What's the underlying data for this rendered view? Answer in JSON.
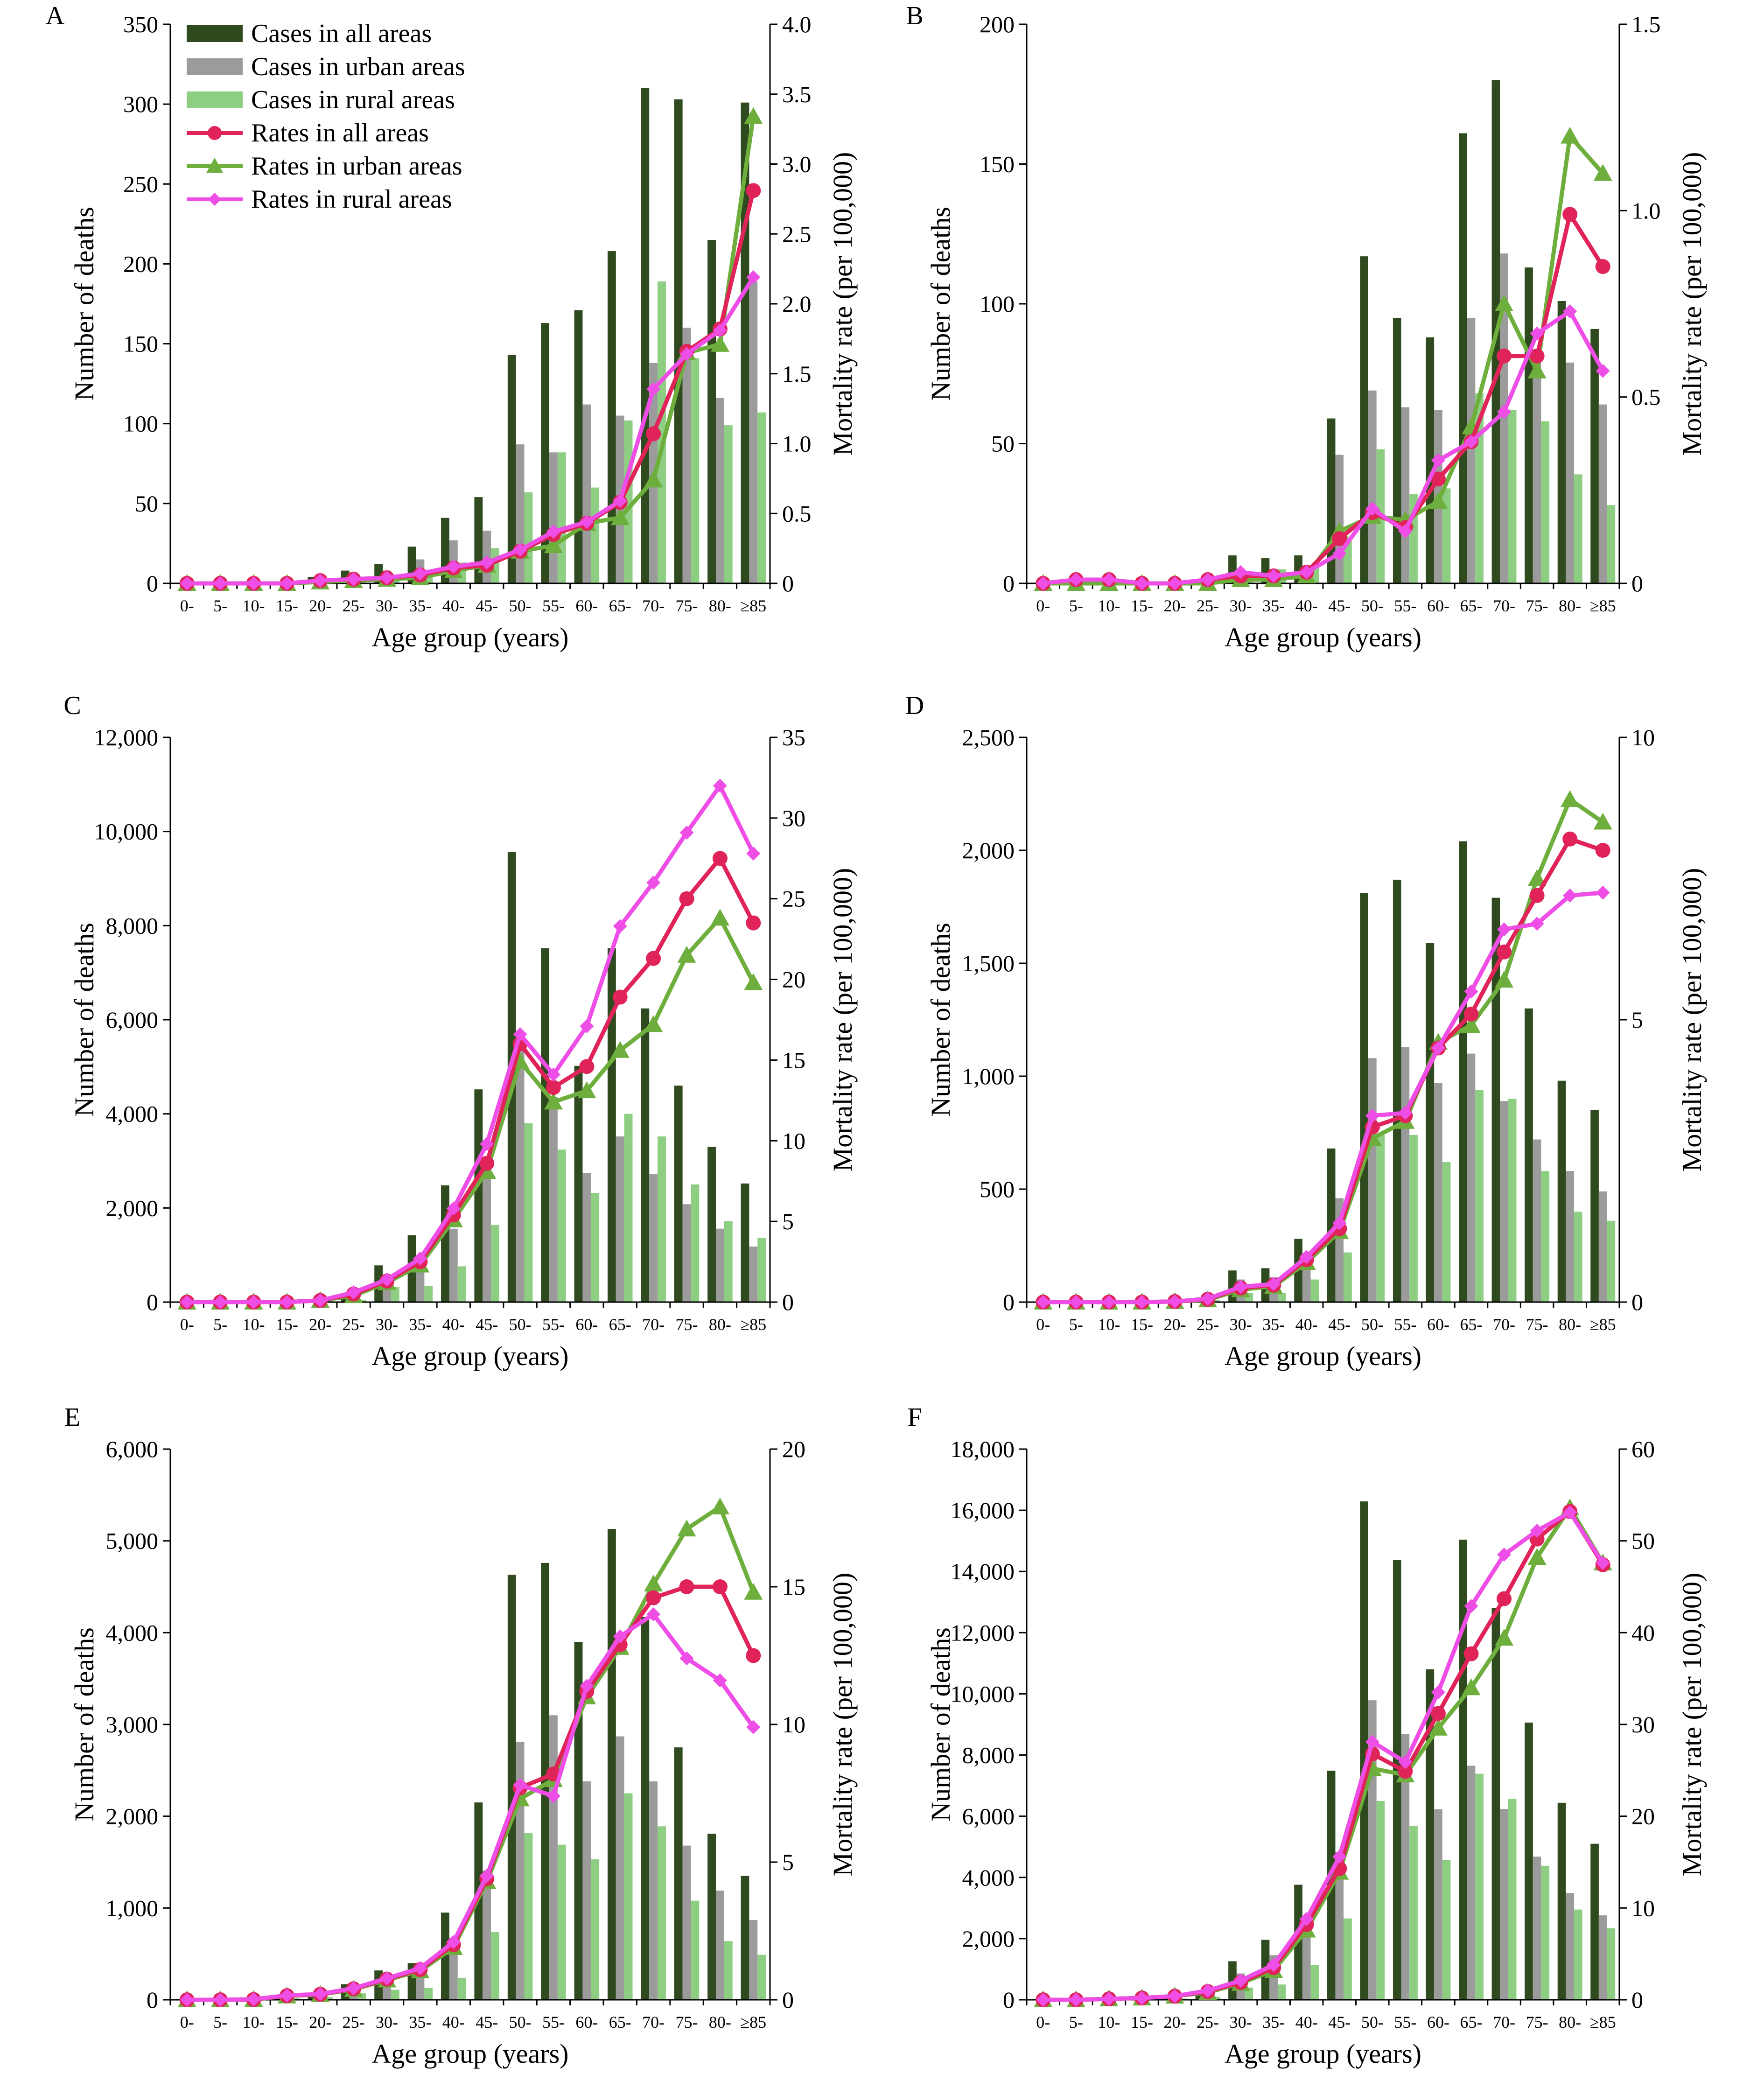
{
  "age_groups": [
    "0-",
    "5-",
    "10-",
    "15-",
    "20-",
    "25-",
    "30-",
    "35-",
    "40-",
    "45-",
    "50-",
    "55-",
    "60-",
    "65-",
    "70-",
    "75-",
    "80-",
    "≥85"
  ],
  "colors": {
    "cases_all": "#2f4a1e",
    "cases_urban": "#9b9b9b",
    "cases_rural": "#8ece83",
    "rates_all": "#e0245a",
    "rates_urban": "#6dae3c",
    "rates_rural": "#ee4ee6"
  },
  "legend": {
    "items": [
      {
        "label": "Cases in all areas",
        "key": "cases_all",
        "kind": "bar"
      },
      {
        "label": "Cases in urban areas",
        "key": "cases_urban",
        "kind": "bar"
      },
      {
        "label": "Cases in rural areas",
        "key": "cases_rural",
        "kind": "bar"
      },
      {
        "label": "Rates in all areas",
        "key": "rates_all",
        "kind": "line",
        "marker": "circle"
      },
      {
        "label": "Rates in urban areas",
        "key": "rates_urban",
        "kind": "line",
        "marker": "triangle"
      },
      {
        "label": "Rates in rural areas",
        "key": "rates_rural",
        "kind": "line",
        "marker": "diamond"
      }
    ]
  },
  "chart_data": [
    {
      "panel": "A",
      "type": "bar",
      "xlabel": "Age group (years)",
      "ylabel": "Number of deaths",
      "y2label": "Mortality rate (per 100,000)",
      "ylim": [
        0,
        350
      ],
      "yticks": [
        0,
        50,
        100,
        150,
        200,
        250,
        300,
        350
      ],
      "y2lim": [
        0,
        4
      ],
      "y2ticks": [
        0,
        0.5,
        1.0,
        1.5,
        2.0,
        2.5,
        3.0,
        3.5,
        4.0
      ],
      "ytick_labels": [
        "0",
        "50",
        "100",
        "150",
        "200",
        "250",
        "300",
        "350"
      ],
      "y2tick_labels": [
        "0",
        "0.5",
        "1.0",
        "1.5",
        "2.0",
        "2.5",
        "3.0",
        "3.5",
        "4.0"
      ],
      "cases_all": [
        0,
        0,
        0,
        1,
        4,
        8,
        12,
        23,
        41,
        54,
        143,
        163,
        171,
        208,
        310,
        303,
        215,
        301
      ],
      "cases_urban": [
        0,
        0,
        0,
        0,
        2,
        5,
        8,
        15,
        27,
        33,
        87,
        82,
        112,
        105,
        138,
        160,
        116,
        189
      ],
      "cases_rural": [
        0,
        0,
        0,
        0,
        1,
        2,
        4,
        7,
        13,
        22,
        57,
        82,
        60,
        102,
        189,
        141,
        99,
        107
      ],
      "rates_all": [
        0,
        0,
        0,
        0,
        0.02,
        0.03,
        0.04,
        0.06,
        0.11,
        0.13,
        0.23,
        0.35,
        0.43,
        0.58,
        1.07,
        1.66,
        1.82,
        2.81
      ],
      "rates_urban": [
        0,
        0,
        0,
        0,
        0.01,
        0.02,
        0.03,
        0.04,
        0.09,
        0.13,
        0.23,
        0.27,
        0.43,
        0.47,
        0.74,
        1.65,
        1.71,
        3.34
      ],
      "rates_rural": [
        0,
        0,
        0,
        0,
        0.02,
        0.03,
        0.04,
        0.07,
        0.12,
        0.15,
        0.24,
        0.37,
        0.44,
        0.59,
        1.39,
        1.64,
        1.81,
        2.19
      ]
    },
    {
      "panel": "B",
      "type": "bar",
      "xlabel": "Age group (years)",
      "ylabel": "Number of deaths",
      "y2label": "Mortality rate (per 100,000)",
      "ylim": [
        0,
        200
      ],
      "yticks": [
        0,
        50,
        100,
        150,
        200
      ],
      "y2lim": [
        0,
        1.5
      ],
      "y2ticks": [
        0,
        0.5,
        1.0,
        1.5
      ],
      "ytick_labels": [
        "0",
        "50",
        "100",
        "150",
        "200"
      ],
      "y2tick_labels": [
        "0",
        "0.5",
        "1.0",
        "1.5"
      ],
      "cases_all": [
        0,
        1,
        1,
        0,
        0,
        1,
        10,
        9,
        10,
        59,
        117,
        95,
        88,
        161,
        180,
        113,
        101,
        91
      ],
      "cases_urban": [
        0,
        1,
        0,
        0,
        0,
        0,
        4,
        5,
        6,
        46,
        69,
        63,
        62,
        95,
        118,
        81,
        79,
        64
      ],
      "cases_rural": [
        0,
        0,
        0,
        0,
        0,
        0,
        3,
        5,
        6,
        15,
        48,
        32,
        34,
        68,
        62,
        58,
        39,
        28
      ],
      "rates_all": [
        0,
        0.01,
        0.01,
        0,
        0,
        0.01,
        0.02,
        0.02,
        0.03,
        0.12,
        0.19,
        0.15,
        0.28,
        0.38,
        0.61,
        0.61,
        0.99,
        0.85
      ],
      "rates_urban": [
        0,
        0,
        0,
        0,
        0,
        0,
        0.01,
        0.01,
        0.02,
        0.14,
        0.18,
        0.17,
        0.22,
        0.42,
        0.75,
        0.57,
        1.2,
        1.1
      ],
      "rates_rural": [
        0,
        0.01,
        0.01,
        0,
        0,
        0.01,
        0.03,
        0.02,
        0.03,
        0.08,
        0.2,
        0.14,
        0.33,
        0.38,
        0.46,
        0.67,
        0.73,
        0.57
      ]
    },
    {
      "panel": "C",
      "type": "bar",
      "xlabel": "Age group (years)",
      "ylabel": "Number of deaths",
      "y2label": "Mortality rate (per 100,000)",
      "ylim": [
        0,
        12000
      ],
      "yticks": [
        0,
        2000,
        4000,
        6000,
        8000,
        10000,
        12000
      ],
      "y2lim": [
        0,
        35
      ],
      "y2ticks": [
        0,
        5,
        10,
        15,
        20,
        25,
        30,
        35
      ],
      "ytick_labels": [
        "0",
        "2,000",
        "4,000",
        "6,000",
        "8,000",
        "10,000",
        "12,000"
      ],
      "y2tick_labels": [
        "0",
        "5",
        "10",
        "15",
        "20",
        "25",
        "30",
        "35"
      ],
      "cases_all": [
        0,
        0,
        0,
        0,
        40,
        120,
        780,
        1420,
        2480,
        4520,
        9560,
        7520,
        5020,
        7520,
        6240,
        4600,
        3300,
        2520
      ],
      "cases_urban": [
        0,
        0,
        0,
        0,
        20,
        60,
        460,
        760,
        1560,
        2780,
        5420,
        4360,
        2740,
        3520,
        2720,
        2080,
        1560,
        1180
      ],
      "cases_rural": [
        0,
        0,
        0,
        0,
        20,
        40,
        320,
        340,
        760,
        1640,
        3800,
        3240,
        2320,
        4000,
        3520,
        2500,
        1720,
        1360
      ],
      "rates_all": [
        0,
        0,
        0,
        0,
        0.1,
        0.5,
        1.3,
        2.5,
        5.4,
        8.6,
        16.0,
        13.3,
        14.6,
        18.9,
        21.3,
        25.0,
        27.5,
        23.5
      ],
      "rates_urban": [
        0,
        0,
        0,
        0,
        0.1,
        0.4,
        1.2,
        2.3,
        5.1,
        8.1,
        14.9,
        12.4,
        13.1,
        15.6,
        17.2,
        21.5,
        23.8,
        19.8
      ],
      "rates_rural": [
        0,
        0,
        0,
        0,
        0.1,
        0.6,
        1.4,
        2.7,
        5.8,
        9.8,
        16.6,
        14.1,
        17.1,
        23.3,
        26.0,
        29.1,
        32.0,
        27.8
      ]
    },
    {
      "panel": "D",
      "type": "bar",
      "xlabel": "Age group (years)",
      "ylabel": "Number of deaths",
      "y2label": "Mortality rate (per 100,000)",
      "ylim": [
        0,
        2500
      ],
      "yticks": [
        0,
        500,
        1000,
        1500,
        2000,
        2500
      ],
      "y2lim": [
        0,
        10
      ],
      "y2ticks": [
        0,
        5,
        10
      ],
      "ytick_labels": [
        "0",
        "500",
        "1,000",
        "1,500",
        "2,000",
        "2,500"
      ],
      "y2tick_labels": [
        "0",
        "5",
        "10"
      ],
      "cases_all": [
        0,
        0,
        0,
        0,
        5,
        20,
        140,
        150,
        280,
        680,
        1810,
        1870,
        1590,
        2040,
        1790,
        1300,
        980,
        850
      ],
      "cases_urban": [
        0,
        0,
        0,
        0,
        3,
        12,
        100,
        110,
        180,
        460,
        1080,
        1130,
        970,
        1100,
        890,
        720,
        580,
        490
      ],
      "cases_rural": [
        0,
        0,
        0,
        0,
        2,
        8,
        40,
        40,
        100,
        220,
        740,
        740,
        620,
        940,
        900,
        580,
        400,
        360
      ],
      "rates_all": [
        0,
        0,
        0,
        0,
        0.01,
        0.05,
        0.25,
        0.3,
        0.75,
        1.3,
        3.1,
        3.3,
        4.5,
        5.1,
        6.2,
        7.2,
        8.2,
        8.0
      ],
      "rates_urban": [
        0,
        0,
        0,
        0,
        0.01,
        0.04,
        0.22,
        0.28,
        0.7,
        1.25,
        2.9,
        3.2,
        4.6,
        4.9,
        5.7,
        7.5,
        8.9,
        8.5
      ],
      "rates_rural": [
        0,
        0,
        0,
        0,
        0.01,
        0.06,
        0.27,
        0.32,
        0.8,
        1.4,
        3.3,
        3.35,
        4.5,
        5.5,
        6.6,
        6.7,
        7.2,
        7.25
      ]
    },
    {
      "panel": "E",
      "type": "bar",
      "xlabel": "Age group (years)",
      "ylabel": "Number of deaths",
      "y2label": "Mortality rate (per 100,000)",
      "ylim": [
        0,
        6000
      ],
      "yticks": [
        0,
        1000,
        2000,
        3000,
        4000,
        5000,
        6000
      ],
      "y2lim": [
        0,
        20
      ],
      "y2ticks": [
        0,
        5,
        10,
        15,
        20
      ],
      "ytick_labels": [
        "0",
        "1,000",
        "2,000",
        "3,000",
        "4,000",
        "5,000",
        "6,000"
      ],
      "y2tick_labels": [
        "0",
        "5",
        "10",
        "15",
        "20"
      ],
      "cases_all": [
        0,
        0,
        10,
        30,
        70,
        170,
        320,
        400,
        950,
        2150,
        4630,
        4760,
        3900,
        5130,
        4170,
        2750,
        1810,
        1350
      ],
      "cases_urban": [
        0,
        0,
        5,
        15,
        40,
        100,
        210,
        270,
        600,
        1410,
        2810,
        3100,
        2380,
        2870,
        2380,
        1680,
        1190,
        870
      ],
      "cases_rural": [
        0,
        0,
        5,
        15,
        30,
        70,
        110,
        130,
        240,
        740,
        1820,
        1690,
        1530,
        2250,
        1890,
        1080,
        640,
        490
      ],
      "rates_all": [
        0,
        0,
        0.01,
        0.15,
        0.2,
        0.4,
        0.75,
        1.1,
        2.0,
        4.4,
        7.7,
        8.2,
        11.2,
        12.9,
        14.6,
        15.0,
        15.0,
        12.5
      ],
      "rates_urban": [
        0,
        0,
        0.01,
        0.14,
        0.19,
        0.38,
        0.72,
        1.05,
        1.9,
        4.3,
        7.3,
        8.0,
        11.0,
        12.8,
        15.1,
        17.1,
        17.9,
        14.8
      ],
      "rates_rural": [
        0,
        0,
        0.02,
        0.16,
        0.21,
        0.42,
        0.78,
        1.15,
        2.1,
        4.5,
        7.8,
        7.4,
        11.4,
        13.2,
        14.0,
        12.4,
        11.6,
        9.9
      ]
    },
    {
      "panel": "F",
      "type": "bar",
      "xlabel": "Age group (years)",
      "ylabel": "Number of deaths",
      "y2label": "Mortality rate (per 100,000)",
      "ylim": [
        0,
        18000
      ],
      "yticks": [
        0,
        2000,
        4000,
        6000,
        8000,
        10000,
        12000,
        14000,
        16000,
        18000
      ],
      "y2lim": [
        0,
        60
      ],
      "y2ticks": [
        0,
        10,
        20,
        30,
        40,
        50,
        60
      ],
      "ytick_labels": [
        "0",
        "2,000",
        "4,000",
        "6,000",
        "8,000",
        "10,000",
        "12,000",
        "14,000",
        "16,000",
        "18,000"
      ],
      "y2tick_labels": [
        "0",
        "10",
        "20",
        "30",
        "40",
        "50",
        "60"
      ],
      "cases_all": [
        0,
        0,
        20,
        50,
        110,
        300,
        1260,
        1960,
        3760,
        7490,
        16290,
        14370,
        10800,
        15040,
        12800,
        9060,
        6440,
        5100
      ],
      "cases_urban": [
        0,
        0,
        10,
        30,
        70,
        200,
        860,
        1460,
        2620,
        4830,
        9790,
        8690,
        6230,
        7650,
        6240,
        4680,
        3490,
        2760
      ],
      "cases_rural": [
        0,
        0,
        10,
        20,
        40,
        100,
        400,
        500,
        1140,
        2660,
        6500,
        5680,
        4570,
        7390,
        6560,
        4380,
        2950,
        2340
      ],
      "rates_all": [
        0,
        0,
        0.1,
        0.2,
        0.4,
        0.9,
        1.9,
        3.5,
        8.2,
        14.3,
        26.8,
        24.9,
        31.2,
        37.7,
        43.7,
        50.2,
        53.2,
        47.4
      ],
      "rates_urban": [
        0,
        0,
        0.1,
        0.2,
        0.4,
        0.8,
        1.8,
        3.2,
        7.6,
        13.9,
        25.2,
        24.5,
        29.6,
        34.0,
        39.4,
        48.2,
        53.6,
        47.6
      ],
      "rates_rural": [
        0,
        0,
        0.1,
        0.2,
        0.4,
        1.0,
        2.1,
        3.8,
        8.8,
        15.6,
        28.1,
        25.9,
        33.5,
        42.9,
        48.5,
        51.1,
        53.1,
        47.6
      ]
    }
  ]
}
